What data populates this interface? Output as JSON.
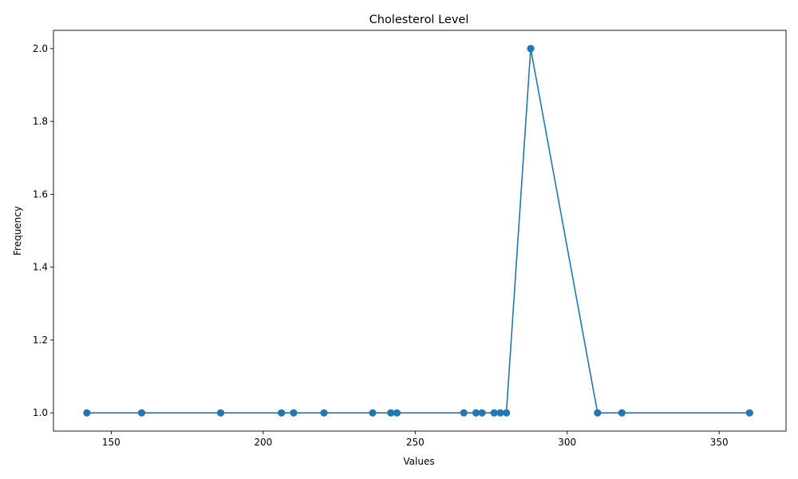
{
  "chart_data": {
    "type": "line",
    "title": "Cholesterol Level",
    "xlabel": "Values",
    "ylabel": "Frequency",
    "xlim": [
      131,
      372
    ],
    "ylim": [
      0.95,
      2.05
    ],
    "x_ticks": [
      150,
      200,
      250,
      300,
      350
    ],
    "y_ticks": [
      1.0,
      1.2,
      1.4,
      1.6,
      1.8,
      2.0
    ],
    "grid": false,
    "marker": "circle",
    "series": [
      {
        "color": "#1f77b4",
        "x": [
          142,
          160,
          186,
          206,
          210,
          220,
          236,
          242,
          244,
          266,
          270,
          272,
          276,
          278,
          280,
          288,
          310,
          318,
          360
        ],
        "y": [
          1,
          1,
          1,
          1,
          1,
          1,
          1,
          1,
          1,
          1,
          1,
          1,
          1,
          1,
          1,
          2,
          1,
          1,
          1
        ]
      }
    ]
  }
}
